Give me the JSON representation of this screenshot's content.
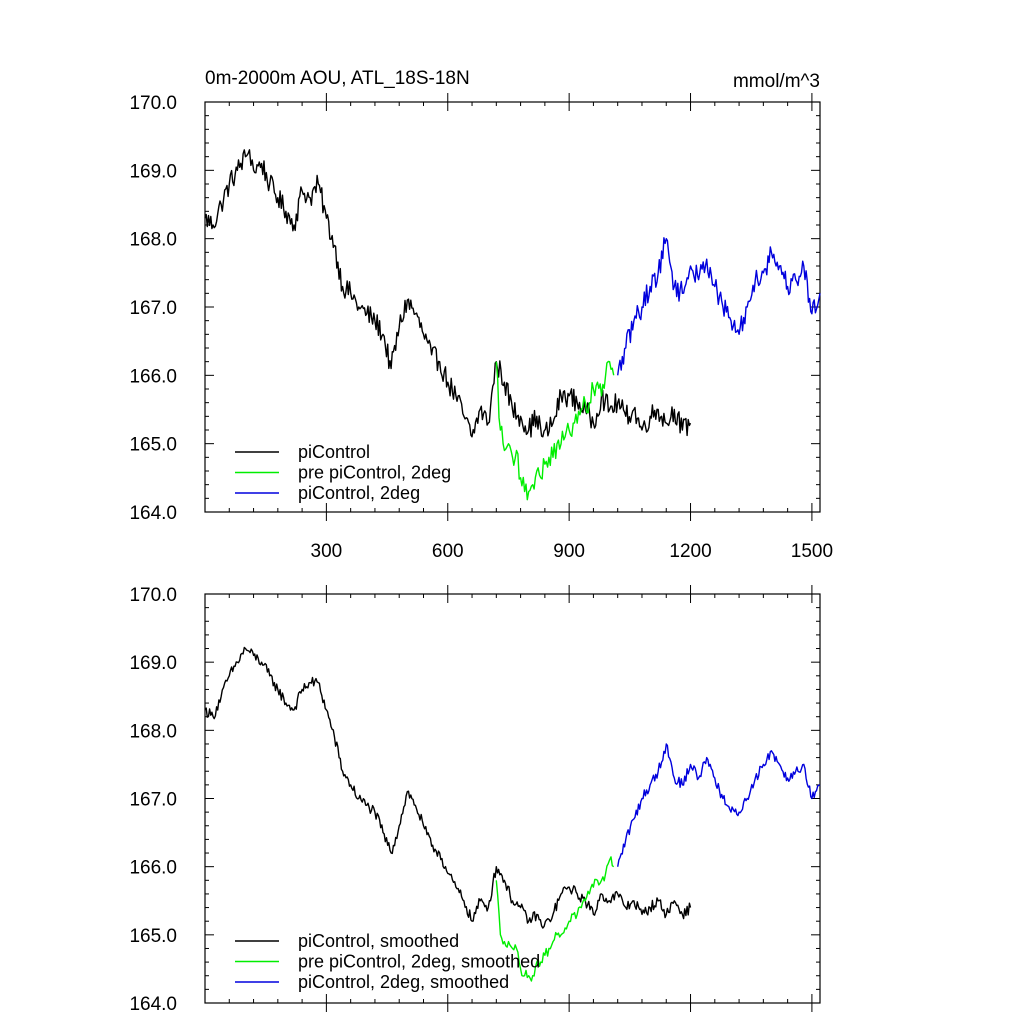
{
  "figure": {
    "title_left": "0m-2000m AOU, ATL_18S-18N",
    "title_right": "mmol/m^3"
  },
  "colors": {
    "piControl": "#000000",
    "pre_piControl_2deg": "#00ee00",
    "piControl_2deg": "#0000dd"
  },
  "chart_data": [
    {
      "type": "line",
      "title": "0m-2000m AOU, ATL_18S-18N",
      "units": "mmol/m^3",
      "xlim": [
        0,
        1520
      ],
      "ylim": [
        164.0,
        170.0
      ],
      "xticks": [
        300,
        600,
        900,
        1200,
        1500
      ],
      "xtick_labels": [
        "300",
        "600",
        "900",
        "1200",
        "1500"
      ],
      "yticks": [
        164.0,
        165.0,
        166.0,
        167.0,
        168.0,
        169.0,
        170.0
      ],
      "ytick_labels": [
        "164.0",
        "165.0",
        "166.0",
        "167.0",
        "168.0",
        "169.0",
        "170.0"
      ],
      "legend_position": "bottom-left",
      "series": [
        {
          "name": "piControl",
          "color": "#000000",
          "x": [
            0,
            20,
            40,
            60,
            80,
            100,
            110,
            120,
            140,
            160,
            180,
            200,
            220,
            240,
            260,
            280,
            300,
            320,
            340,
            360,
            380,
            400,
            420,
            440,
            460,
            480,
            500,
            520,
            540,
            560,
            580,
            600,
            620,
            640,
            660,
            680,
            700,
            720,
            740,
            760,
            780,
            800,
            820,
            835,
            860,
            880,
            900,
            920,
            940,
            960,
            980,
            1000,
            1020,
            1040,
            1060,
            1080,
            1100,
            1120,
            1140,
            1160,
            1180,
            1200
          ],
          "y": [
            168.3,
            168.2,
            168.5,
            168.8,
            169.0,
            169.2,
            169.3,
            169.0,
            169.1,
            168.8,
            168.6,
            168.4,
            168.2,
            168.7,
            168.6,
            168.8,
            168.3,
            167.9,
            167.3,
            167.2,
            167.0,
            166.9,
            166.8,
            166.6,
            166.1,
            166.7,
            167.1,
            166.9,
            166.6,
            166.3,
            166.2,
            165.9,
            165.7,
            165.4,
            165.1,
            165.5,
            165.3,
            166.2,
            165.9,
            165.5,
            165.4,
            165.2,
            165.4,
            165.1,
            165.3,
            165.7,
            165.7,
            165.6,
            165.5,
            165.3,
            165.7,
            165.5,
            165.6,
            165.4,
            165.5,
            165.2,
            165.4,
            165.5,
            165.3,
            165.5,
            165.2,
            165.3
          ]
        },
        {
          "name": "pre piControl, 2deg",
          "color": "#00ee00",
          "x": [
            720,
            730,
            740,
            750,
            760,
            770,
            780,
            790,
            800,
            810,
            820,
            830,
            840,
            850,
            860,
            870,
            880,
            890,
            900,
            910,
            920,
            930,
            940,
            950,
            960,
            970,
            980,
            990,
            1000,
            1010
          ],
          "y": [
            166.2,
            165.2,
            164.9,
            165.0,
            164.8,
            164.9,
            164.5,
            164.3,
            164.3,
            164.4,
            164.6,
            164.5,
            164.7,
            164.8,
            164.8,
            165.0,
            165.0,
            165.1,
            165.2,
            165.3,
            165.3,
            165.5,
            165.6,
            165.6,
            165.8,
            165.9,
            165.7,
            166.0,
            166.2,
            166.0
          ]
        },
        {
          "name": "piControl, 2deg",
          "color": "#0000dd",
          "x": [
            1020,
            1040,
            1060,
            1080,
            1100,
            1120,
            1140,
            1160,
            1180,
            1200,
            1220,
            1240,
            1260,
            1280,
            1300,
            1320,
            1340,
            1360,
            1380,
            1400,
            1420,
            1440,
            1460,
            1480,
            1500,
            1520
          ],
          "y": [
            166.0,
            166.4,
            166.8,
            167.0,
            167.3,
            167.5,
            168.0,
            167.3,
            167.2,
            167.6,
            167.4,
            167.7,
            167.3,
            167.0,
            166.8,
            166.6,
            167.0,
            167.4,
            167.5,
            167.8,
            167.6,
            167.3,
            167.4,
            167.6,
            166.9,
            167.2
          ]
        }
      ],
      "legend": [
        "piControl",
        "pre piControl, 2deg",
        "piControl, 2deg"
      ]
    },
    {
      "type": "line",
      "title": "",
      "xlim": [
        0,
        1520
      ],
      "ylim": [
        164.0,
        170.0
      ],
      "xticks": [
        300,
        600,
        900,
        1200,
        1500
      ],
      "yticks": [
        164.0,
        165.0,
        166.0,
        167.0,
        168.0,
        169.0,
        170.0
      ],
      "ytick_labels": [
        "164.0",
        "165.0",
        "166.0",
        "167.0",
        "168.0",
        "169.0",
        "170.0"
      ],
      "legend_position": "bottom-left",
      "series": [
        {
          "name": "piControl, smoothed",
          "color": "#000000",
          "x": [
            0,
            20,
            40,
            60,
            80,
            100,
            120,
            140,
            160,
            180,
            200,
            220,
            240,
            260,
            280,
            300,
            320,
            340,
            360,
            380,
            400,
            420,
            440,
            460,
            480,
            500,
            520,
            540,
            560,
            580,
            600,
            620,
            640,
            660,
            680,
            700,
            720,
            740,
            760,
            780,
            800,
            820,
            835,
            860,
            880,
            900,
            920,
            940,
            960,
            980,
            1000,
            1020,
            1040,
            1060,
            1080,
            1100,
            1120,
            1140,
            1160,
            1180,
            1200
          ],
          "y": [
            168.3,
            168.2,
            168.5,
            168.8,
            169.0,
            169.2,
            169.1,
            169.0,
            168.8,
            168.6,
            168.4,
            168.3,
            168.6,
            168.7,
            168.7,
            168.3,
            167.9,
            167.4,
            167.2,
            167.0,
            166.9,
            166.8,
            166.5,
            166.2,
            166.6,
            167.1,
            166.9,
            166.6,
            166.3,
            166.2,
            165.9,
            165.7,
            165.5,
            165.2,
            165.5,
            165.4,
            166.0,
            165.8,
            165.5,
            165.4,
            165.2,
            165.3,
            165.1,
            165.3,
            165.6,
            165.7,
            165.6,
            165.5,
            165.3,
            165.6,
            165.5,
            165.6,
            165.4,
            165.5,
            165.3,
            165.4,
            165.5,
            165.3,
            165.5,
            165.3,
            165.4
          ]
        },
        {
          "name": "pre piControl, 2deg, smoothed",
          "color": "#00ee00",
          "x": [
            720,
            730,
            740,
            750,
            760,
            770,
            780,
            790,
            800,
            810,
            820,
            830,
            840,
            850,
            860,
            870,
            880,
            890,
            900,
            910,
            920,
            930,
            940,
            950,
            960,
            970,
            980,
            990,
            1000,
            1010
          ],
          "y": [
            165.8,
            165.0,
            164.9,
            164.9,
            164.8,
            164.8,
            164.5,
            164.4,
            164.4,
            164.4,
            164.6,
            164.6,
            164.7,
            164.8,
            164.9,
            165.0,
            165.0,
            165.1,
            165.2,
            165.3,
            165.3,
            165.4,
            165.5,
            165.6,
            165.7,
            165.8,
            165.8,
            165.9,
            166.1,
            166.0
          ]
        },
        {
          "name": "piControl, 2deg, smoothed",
          "color": "#0000dd",
          "x": [
            1020,
            1040,
            1060,
            1080,
            1100,
            1120,
            1140,
            1160,
            1180,
            1200,
            1220,
            1240,
            1260,
            1280,
            1300,
            1320,
            1340,
            1360,
            1380,
            1400,
            1420,
            1440,
            1460,
            1480,
            1500,
            1520
          ],
          "y": [
            166.0,
            166.4,
            166.7,
            167.0,
            167.2,
            167.4,
            167.8,
            167.3,
            167.2,
            167.5,
            167.3,
            167.6,
            167.3,
            167.0,
            166.8,
            166.8,
            167.0,
            167.3,
            167.5,
            167.7,
            167.5,
            167.3,
            167.4,
            167.5,
            167.0,
            167.2
          ]
        }
      ],
      "legend": [
        "piControl, smoothed",
        "pre piControl, 2deg, smoothed",
        "piControl, 2deg, smoothed"
      ]
    }
  ]
}
